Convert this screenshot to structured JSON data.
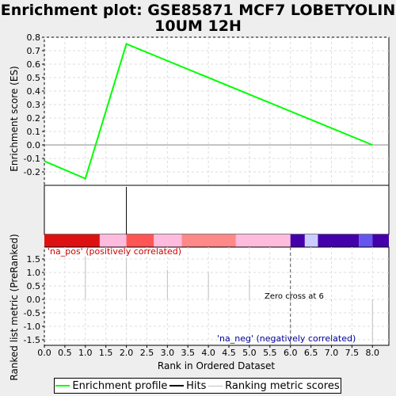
{
  "title_lines": [
    "Enrichment plot: GSE85871 MCF7 LOBETYOLIN",
    "10UM 12H"
  ],
  "colors": {
    "background": "#eeeeee",
    "plot_bg": "#ffffff",
    "es_line": "#00ff00",
    "hits": "#000000",
    "ranking": "#c0c0c0",
    "pos_label": "#cc0000",
    "neg_label": "#000099"
  },
  "legend": {
    "enrichment_profile": "Enrichment profile",
    "hits": "Hits",
    "ranking_metric_scores": "Ranking metric scores"
  },
  "chart_data": [
    {
      "type": "line",
      "panel": "enrichment-score",
      "ylabel": "Enrichment score (ES)",
      "ylim": [
        -0.3,
        0.8
      ],
      "yticks": [
        "0.8",
        "0.7",
        "0.6",
        "0.5",
        "0.4",
        "0.3",
        "0.2",
        "0.1",
        "0.0",
        "-0.1",
        "-0.2"
      ],
      "ytick_values": [
        0.8,
        0.7,
        0.6,
        0.5,
        0.4,
        0.3,
        0.2,
        0.1,
        0.0,
        -0.1,
        -0.2
      ],
      "series": [
        {
          "x": [
            0,
            1,
            2,
            8
          ],
          "y": [
            -0.12,
            -0.25,
            0.75,
            0.0
          ]
        }
      ],
      "grid": true
    },
    {
      "type": "bar",
      "panel": "hits",
      "hit_positions": [
        2
      ]
    },
    {
      "type": "heatmap",
      "panel": "rank-colorbar",
      "segments": [
        {
          "from": 0.0,
          "to": 1.35,
          "color": "#dd1111"
        },
        {
          "from": 1.35,
          "to": 2.0,
          "color": "#ffbbdd"
        },
        {
          "from": 2.0,
          "to": 2.67,
          "color": "#ff5555"
        },
        {
          "from": 2.67,
          "to": 3.35,
          "color": "#ffbbdd"
        },
        {
          "from": 3.35,
          "to": 4.67,
          "color": "#ff8888"
        },
        {
          "from": 4.67,
          "to": 6.0,
          "color": "#ffbbdd"
        },
        {
          "from": 6.0,
          "to": 6.35,
          "color": "#4400aa"
        },
        {
          "from": 6.35,
          "to": 6.67,
          "color": "#ccccff"
        },
        {
          "from": 6.67,
          "to": 7.67,
          "color": "#4400aa"
        },
        {
          "from": 7.67,
          "to": 8.0,
          "color": "#6655ee"
        },
        {
          "from": 8.0,
          "to": 8.4,
          "color": "#4400aa"
        }
      ]
    },
    {
      "type": "bar",
      "panel": "ranked-metric",
      "ylabel": "Ranked list metric (PreRanked)",
      "xlabel": "Rank in Ordered Dataset",
      "ylim": [
        -1.5,
        1.5
      ],
      "yticks": [
        "1.5",
        "1.0",
        "0.5",
        "0.0",
        "-0.5",
        "-1.0",
        "-1.5"
      ],
      "ytick_values": [
        1.5,
        1.0,
        0.5,
        0.0,
        -0.5,
        -1.0,
        -1.5
      ],
      "xlim": [
        0,
        8.4
      ],
      "xticks": [
        "0.0",
        "0.5",
        "1.0",
        "1.5",
        "2.0",
        "2.5",
        "3.0",
        "3.5",
        "4.0",
        "4.5",
        "5.0",
        "5.5",
        "6.0",
        "6.5",
        "7.0",
        "7.5",
        "8.0"
      ],
      "xtick_values": [
        0,
        0.5,
        1,
        1.5,
        2,
        2.5,
        3,
        3.5,
        4,
        4.5,
        5,
        5.5,
        6,
        6.5,
        7,
        7.5,
        8
      ],
      "x": [
        1,
        2,
        3,
        4,
        5,
        6,
        7,
        8
      ],
      "values": [
        1.6,
        1.5,
        1.1,
        1.0,
        0.75,
        -0.1,
        -0.05,
        -1.6
      ],
      "zero_cross_x": 6,
      "annotations": {
        "positive": "'na_pos' (positively correlated)",
        "negative": "'na_neg' (negatively correlated)",
        "zero_cross": "Zero cross at 6"
      },
      "grid": true
    }
  ]
}
